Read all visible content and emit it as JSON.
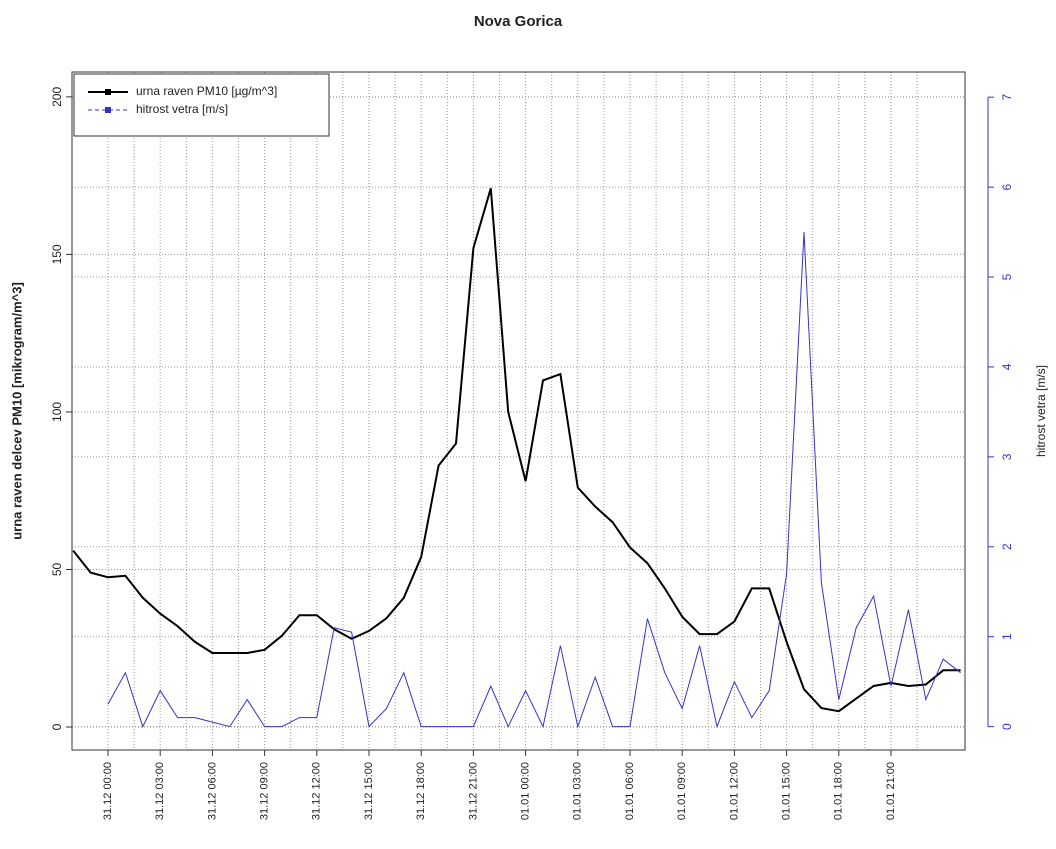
{
  "chart_data": {
    "type": "line",
    "title": "Nova Gorica",
    "ylabel": "urna raven delcev PM10 [mikrogram/m^3]",
    "y2label": "hitrost vetra [m/s]",
    "categories": [
      null,
      null,
      "31.12 00:00",
      null,
      null,
      "31.12 03:00",
      null,
      null,
      "31.12 06:00",
      null,
      null,
      "31.12 09:00",
      null,
      null,
      "31.12 12:00",
      null,
      null,
      "31.12 15:00",
      null,
      null,
      "31.12 18:00",
      null,
      null,
      "31.12 21:00",
      null,
      null,
      "01.01 00:00",
      null,
      null,
      "01.01 03:00",
      null,
      null,
      "01.01 06:00",
      null,
      null,
      "01.01 09:00",
      null,
      null,
      "01.01 12:00",
      null,
      null,
      "01.01 15:00",
      null,
      null,
      "01.01 18:00",
      null,
      null,
      "01.01 21:00",
      null,
      null,
      null,
      null
    ],
    "series": [
      {
        "name": "urna raven PM10 [µg/m^3]",
        "color": "#000000",
        "axis": "y",
        "values": [
          56,
          49,
          47.5,
          48,
          41,
          36,
          32,
          27,
          23.5,
          23.5,
          23.5,
          24.5,
          29,
          35.5,
          35.5,
          31,
          28,
          30.5,
          34.5,
          41,
          54,
          83,
          90,
          152,
          171,
          100,
          78,
          110,
          112,
          76,
          70,
          65,
          57,
          52,
          44,
          35,
          29.5,
          29.5,
          33.5,
          44,
          44,
          27,
          12,
          6,
          5,
          9,
          13,
          14,
          13,
          13.5,
          18,
          18
        ]
      },
      {
        "name": "hitrost vetra [m/s]",
        "color": "#3333cc",
        "axis": "y2",
        "values": [
          null,
          null,
          0.25,
          0.6,
          0,
          0.4,
          0.1,
          0.1,
          0.05,
          0,
          0.3,
          0,
          0,
          0.1,
          0.1,
          1.1,
          1.05,
          0,
          0.2,
          0.6,
          0,
          0,
          0,
          0,
          0.45,
          0,
          0.4,
          0,
          0.9,
          0,
          0.55,
          0,
          0,
          1.2,
          0.6,
          0.2,
          0.9,
          0,
          0.5,
          0.1,
          0.4,
          1.7,
          5.5,
          1.6,
          0.3,
          1.1,
          1.45,
          0.45,
          1.3,
          0.3,
          0.75,
          0.6
        ]
      }
    ],
    "ylim": [
      -7.3,
      207.9
    ],
    "yticks": [
      0,
      50,
      100,
      150,
      200
    ],
    "y2lim": [
      -0.26,
      7.28
    ],
    "y2ticks": [
      0,
      1,
      2,
      3,
      4,
      5,
      6,
      7
    ],
    "grid": true,
    "legend": "top-left"
  }
}
